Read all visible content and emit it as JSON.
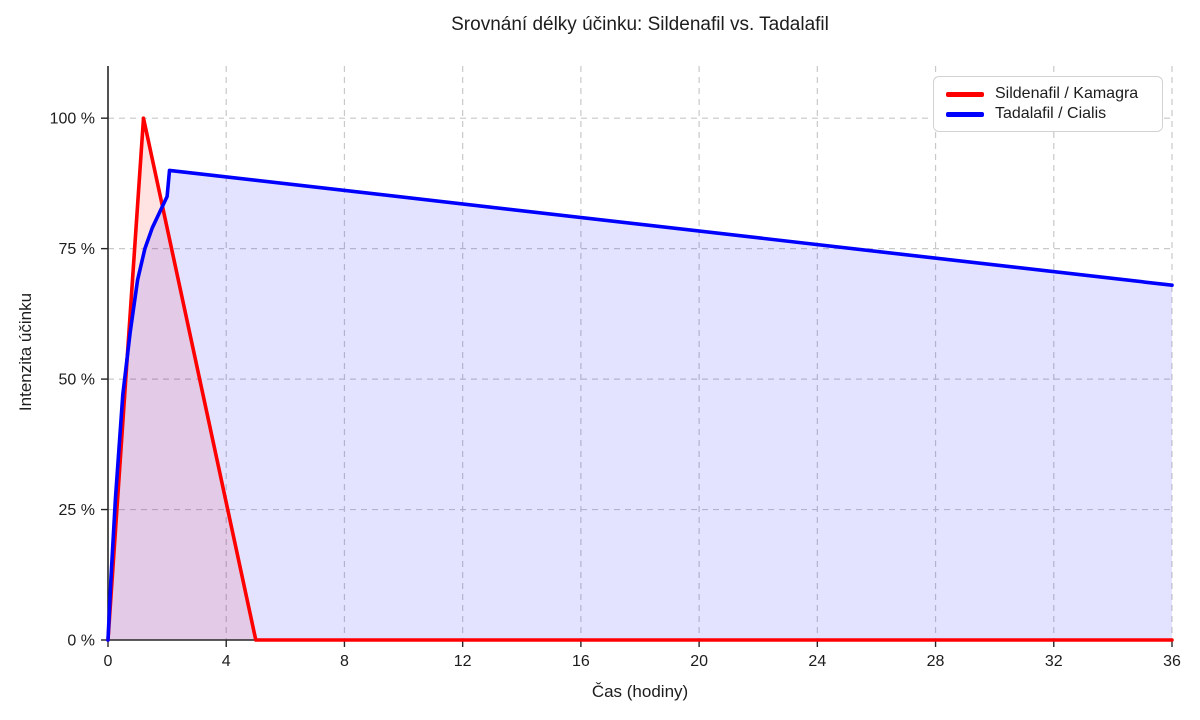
{
  "chart_data": {
    "type": "area",
    "title": "Srovnání délky účinku: Sildenafil vs. Tadalafil",
    "xlabel": "Čas (hodiny)",
    "ylabel": "Intenzita účinku",
    "xlim": [
      0,
      36
    ],
    "ylim": [
      0,
      110
    ],
    "x_ticks": [
      0,
      4,
      8,
      12,
      16,
      20,
      24,
      28,
      32,
      36
    ],
    "y_ticks": [
      0,
      25,
      50,
      75,
      100
    ],
    "y_tick_suffix": " %",
    "grid": "dashed",
    "grid_color": "#c9c9c9",
    "spine_color": "#262626",
    "text_color": "#1d1d1d",
    "legend_position": "upper right",
    "series": [
      {
        "name": "Sildenafil / Kamagra",
        "color": "#ff0000",
        "fill_opacity": 0.11,
        "points": [
          [
            0,
            0
          ],
          [
            1.2,
            100
          ],
          [
            5,
            0
          ],
          [
            36,
            0
          ]
        ]
      },
      {
        "name": "Tadalafil / Cialis",
        "color": "#0000ff",
        "fill_opacity": 0.11,
        "points": [
          [
            0,
            0
          ],
          [
            0.1,
            12
          ],
          [
            0.25,
            27
          ],
          [
            0.5,
            47
          ],
          [
            0.75,
            59
          ],
          [
            1,
            69
          ],
          [
            1.25,
            75
          ],
          [
            1.5,
            79
          ],
          [
            1.75,
            82
          ],
          [
            2,
            85
          ],
          [
            2.08,
            90
          ],
          [
            36,
            68
          ]
        ]
      }
    ]
  }
}
